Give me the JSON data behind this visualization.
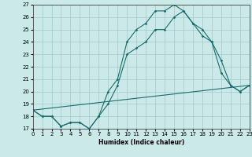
{
  "xlabel": "Humidex (Indice chaleur)",
  "xlim": [
    0,
    23
  ],
  "ylim": [
    17,
    27
  ],
  "yticks": [
    17,
    18,
    19,
    20,
    21,
    22,
    23,
    24,
    25,
    26,
    27
  ],
  "xticks": [
    0,
    1,
    2,
    3,
    4,
    5,
    6,
    7,
    8,
    9,
    10,
    11,
    12,
    13,
    14,
    15,
    16,
    17,
    18,
    19,
    20,
    21,
    22,
    23
  ],
  "xtick_labels": [
    "0",
    "1",
    "2",
    "3",
    "4",
    "5",
    "6",
    "7",
    "8",
    "9",
    "10",
    "11",
    "12",
    "13",
    "14",
    "15",
    "16",
    "17",
    "18",
    "19",
    "20",
    "21",
    "22",
    "23"
  ],
  "bg_color": "#cce9e9",
  "grid_color": "#99cccc",
  "line_color": "#1a6b6b",
  "line1_x": [
    0,
    1,
    2,
    3,
    4,
    5,
    6,
    7,
    8,
    9,
    10,
    11,
    12,
    13,
    14,
    15,
    16,
    17,
    18,
    19,
    20,
    21,
    22,
    23
  ],
  "line1_y": [
    18.5,
    18.0,
    18.0,
    17.2,
    17.5,
    17.5,
    17.0,
    18.0,
    20.0,
    21.0,
    24.0,
    25.0,
    25.5,
    26.5,
    26.5,
    27.0,
    26.5,
    25.5,
    24.5,
    24.0,
    22.5,
    20.5,
    20.0,
    20.5
  ],
  "line2_x": [
    0,
    1,
    2,
    3,
    4,
    5,
    6,
    7,
    8,
    9,
    10,
    11,
    12,
    13,
    14,
    15,
    16,
    17,
    18,
    19,
    20,
    21,
    22,
    23
  ],
  "line2_y": [
    18.5,
    18.0,
    18.0,
    17.2,
    17.5,
    17.5,
    17.0,
    18.0,
    19.0,
    20.5,
    23.0,
    23.5,
    24.0,
    25.0,
    25.0,
    26.0,
    26.5,
    25.5,
    25.0,
    24.0,
    21.5,
    20.5,
    20.0,
    20.5
  ],
  "line3_x": [
    0,
    23
  ],
  "line3_y": [
    18.5,
    20.5
  ],
  "marker": "D",
  "markersize": 1.8,
  "linewidth": 0.8,
  "tick_fontsize": 5,
  "xlabel_fontsize": 5.5
}
